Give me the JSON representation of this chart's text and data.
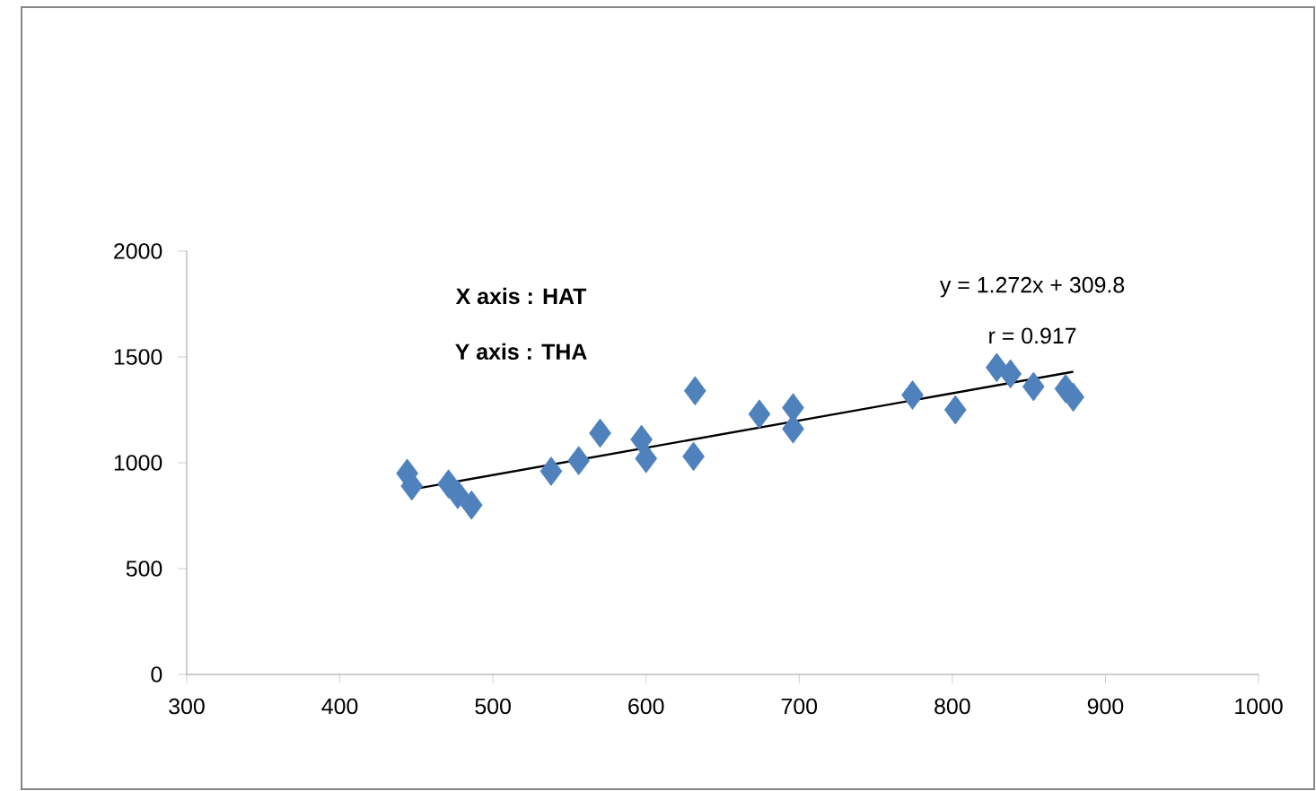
{
  "chart_data": {
    "type": "scatter",
    "xlim": [
      300,
      1000
    ],
    "ylim": [
      0,
      2000
    ],
    "xticks": [
      300,
      400,
      500,
      600,
      700,
      800,
      900,
      1000
    ],
    "yticks": [
      0,
      500,
      1000,
      1500,
      2000
    ],
    "grid": false,
    "marker": "diamond",
    "annotations": [
      "y = 1.272x + 309.8",
      "r = 0.917",
      "X axis : HAT",
      "Y axis : THA"
    ],
    "series": [
      {
        "color": "#4f81bd",
        "x": [
          444,
          447,
          471,
          477,
          486,
          538,
          556,
          570,
          597,
          600,
          631,
          632,
          674,
          696,
          696,
          774,
          802,
          829,
          838,
          853,
          874,
          879
        ],
        "values": [
          950,
          890,
          900,
          850,
          800,
          960,
          1010,
          1140,
          1110,
          1020,
          1030,
          1340,
          1230,
          1260,
          1160,
          1320,
          1250,
          1450,
          1420,
          1360,
          1350,
          1310
        ]
      },
      {
        "type": "line",
        "color": "#000000",
        "marker": "none",
        "x": [
          444,
          879
        ],
        "values": [
          870,
          1430
        ]
      }
    ]
  }
}
